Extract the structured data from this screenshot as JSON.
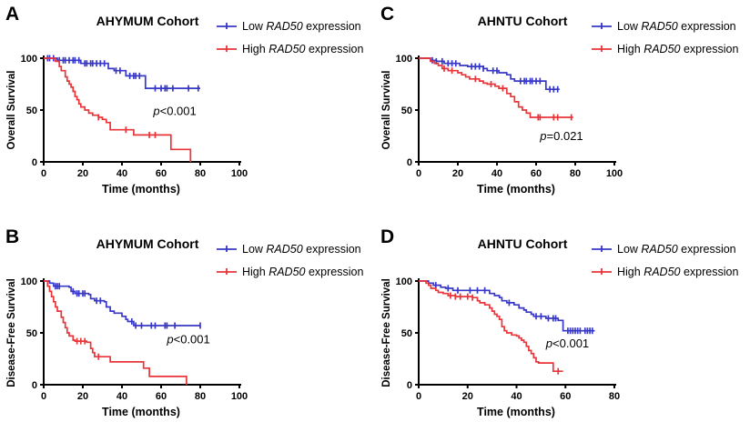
{
  "figure": {
    "background": "#ffffff",
    "colors": {
      "low": "#3737c8",
      "high": "#e93438",
      "axis": "#000000"
    },
    "legend": {
      "low": {
        "prefix": "Low ",
        "gene": "RAD50",
        "suffix": " expression"
      },
      "high": {
        "prefix": "High ",
        "gene": "RAD50",
        "suffix": " expression"
      }
    }
  },
  "chart_data": [
    {
      "panel": "A",
      "type": "line",
      "title": "AHYMUM Cohort",
      "xlabel": "Time (months)",
      "ylabel": "Overall Survival",
      "xlim": [
        0,
        100
      ],
      "xticks": [
        0,
        20,
        40,
        60,
        80,
        100
      ],
      "ylim": [
        0,
        100
      ],
      "yticks": [
        0,
        50,
        100
      ],
      "legend_position": "top-right",
      "grid": false,
      "p": {
        "symbol": "p",
        "comparison": "<0.001",
        "x": 56,
        "y": 45
      },
      "series": [
        {
          "name": "Low RAD50 expression",
          "color_key": "low",
          "steps": [
            [
              0,
              100
            ],
            [
              7,
              98
            ],
            [
              19,
              95
            ],
            [
              33,
              90
            ],
            [
              36,
              88
            ],
            [
              42,
              83
            ],
            [
              52,
              71
            ],
            [
              80,
              71
            ]
          ],
          "censors": [
            2,
            3,
            5,
            8,
            10,
            11,
            13,
            15,
            16,
            18,
            21,
            22,
            24,
            25,
            27,
            29,
            31,
            37,
            39,
            44,
            46,
            47,
            49,
            57,
            60,
            62,
            63,
            66,
            74,
            79
          ]
        },
        {
          "name": "High RAD50 expression",
          "color_key": "high",
          "steps": [
            [
              0,
              100
            ],
            [
              6,
              97
            ],
            [
              8,
              92
            ],
            [
              9,
              88
            ],
            [
              11,
              82
            ],
            [
              12,
              78
            ],
            [
              13,
              75
            ],
            [
              14,
              72
            ],
            [
              15,
              68
            ],
            [
              16,
              63
            ],
            [
              17,
              60
            ],
            [
              18,
              56
            ],
            [
              19,
              53
            ],
            [
              21,
              50
            ],
            [
              23,
              47
            ],
            [
              25,
              45
            ],
            [
              28,
              43
            ],
            [
              30,
              41
            ],
            [
              32,
              38
            ],
            [
              34,
              31
            ],
            [
              46,
              26
            ],
            [
              65,
              12
            ],
            [
              75,
              0
            ]
          ],
          "censors": [
            28,
            42,
            54,
            57
          ]
        }
      ]
    },
    {
      "panel": "B",
      "type": "line",
      "title": "AHYMUM Cohort",
      "xlabel": "Time (months)",
      "ylabel": "Disease-Free Survival",
      "xlim": [
        0,
        100
      ],
      "xticks": [
        0,
        20,
        40,
        60,
        80,
        100
      ],
      "ylim": [
        0,
        100
      ],
      "yticks": [
        0,
        50,
        100
      ],
      "legend_position": "top-right",
      "grid": false,
      "p": {
        "symbol": "p",
        "comparison": "<0.001",
        "x": 63,
        "y": 40
      },
      "series": [
        {
          "name": "Low RAD50 expression",
          "color_key": "low",
          "steps": [
            [
              0,
              100
            ],
            [
              3,
              98
            ],
            [
              5,
              95
            ],
            [
              13,
              94
            ],
            [
              14,
              90
            ],
            [
              16,
              88
            ],
            [
              23,
              87
            ],
            [
              24,
              83
            ],
            [
              26,
              81
            ],
            [
              31,
              80
            ],
            [
              32,
              75
            ],
            [
              34,
              71
            ],
            [
              36,
              69
            ],
            [
              40,
              66
            ],
            [
              42,
              63
            ],
            [
              43,
              61
            ],
            [
              46,
              57
            ],
            [
              80,
              57
            ]
          ],
          "censors": [
            6,
            7,
            8,
            15,
            17,
            18,
            20,
            21,
            27,
            29,
            45,
            47,
            50,
            55,
            57,
            62,
            63,
            67,
            80
          ]
        },
        {
          "name": "High RAD50 expression",
          "color_key": "high",
          "steps": [
            [
              0,
              100
            ],
            [
              2,
              95
            ],
            [
              3,
              90
            ],
            [
              4,
              85
            ],
            [
              5,
              80
            ],
            [
              6,
              75
            ],
            [
              7,
              71
            ],
            [
              9,
              65
            ],
            [
              10,
              60
            ],
            [
              11,
              55
            ],
            [
              12,
              50
            ],
            [
              13,
              47
            ],
            [
              15,
              43
            ],
            [
              16,
              42
            ],
            [
              22,
              41
            ],
            [
              24,
              35
            ],
            [
              25,
              31
            ],
            [
              26,
              27
            ],
            [
              34,
              22
            ],
            [
              51,
              16
            ],
            [
              54,
              8
            ],
            [
              73,
              0
            ]
          ],
          "censors": [
            17,
            19,
            21,
            28
          ]
        }
      ]
    },
    {
      "panel": "C",
      "type": "line",
      "title": "AHNTU Cohort",
      "xlabel": "Time (months)",
      "ylabel": "Overall Survival",
      "xlim": [
        0,
        100
      ],
      "xticks": [
        0,
        20,
        40,
        60,
        80,
        100
      ],
      "ylim": [
        0,
        100
      ],
      "yticks": [
        0,
        50,
        100
      ],
      "legend_position": "top-right",
      "grid": false,
      "p": {
        "symbol": "p",
        "comparison": "=0.021",
        "x": 62,
        "y": 21
      },
      "series": [
        {
          "name": "Low RAD50 expression",
          "color_key": "low",
          "steps": [
            [
              0,
              100
            ],
            [
              6,
              98
            ],
            [
              9,
              97
            ],
            [
              13,
              95
            ],
            [
              21,
              93
            ],
            [
              25,
              92
            ],
            [
              33,
              90
            ],
            [
              35,
              88
            ],
            [
              41,
              86
            ],
            [
              45,
              84
            ],
            [
              47,
              80
            ],
            [
              49,
              78
            ],
            [
              65,
              70
            ],
            [
              72,
              70
            ]
          ],
          "censors": [
            7,
            9,
            12,
            15,
            17,
            19,
            27,
            29,
            31,
            33,
            38,
            40,
            52,
            54,
            55,
            57,
            58,
            60,
            62,
            67,
            69,
            71
          ]
        },
        {
          "name": "High RAD50 expression",
          "color_key": "high",
          "steps": [
            [
              0,
              100
            ],
            [
              6,
              97
            ],
            [
              8,
              95
            ],
            [
              10,
              93
            ],
            [
              12,
              90
            ],
            [
              15,
              88
            ],
            [
              20,
              86
            ],
            [
              22,
              84
            ],
            [
              24,
              82
            ],
            [
              26,
              80
            ],
            [
              31,
              78
            ],
            [
              33,
              76
            ],
            [
              35,
              75
            ],
            [
              39,
              73
            ],
            [
              41,
              71
            ],
            [
              45,
              66
            ],
            [
              47,
              63
            ],
            [
              49,
              58
            ],
            [
              51,
              53
            ],
            [
              53,
              50
            ],
            [
              55,
              47
            ],
            [
              57,
              43
            ],
            [
              79,
              43
            ]
          ],
          "censors": [
            13,
            17,
            29,
            37,
            43,
            61,
            62,
            69,
            71,
            78
          ]
        }
      ]
    },
    {
      "panel": "D",
      "type": "line",
      "title": "AHNTU Cohort",
      "xlabel": "Time (months)",
      "ylabel": "Disease-Free Survival",
      "xlim": [
        0,
        80
      ],
      "xticks": [
        0,
        20,
        40,
        60,
        80
      ],
      "ylim": [
        0,
        100
      ],
      "yticks": [
        0,
        50,
        100
      ],
      "legend_position": "top-right",
      "grid": false,
      "p": {
        "symbol": "p",
        "comparison": "<0.001",
        "x": 52,
        "y": 36
      },
      "series": [
        {
          "name": "Low RAD50 expression",
          "color_key": "low",
          "steps": [
            [
              0,
              100
            ],
            [
              4,
              98
            ],
            [
              6,
              96
            ],
            [
              9,
              94
            ],
            [
              11,
              93
            ],
            [
              14,
              91
            ],
            [
              29,
              88
            ],
            [
              31,
              86
            ],
            [
              33,
              84
            ],
            [
              34,
              81
            ],
            [
              36,
              79
            ],
            [
              39,
              77
            ],
            [
              41,
              74
            ],
            [
              43,
              72
            ],
            [
              44,
              70
            ],
            [
              46,
              68
            ],
            [
              47,
              66
            ],
            [
              52,
              64
            ],
            [
              57,
              62
            ],
            [
              59,
              52
            ],
            [
              72,
              52
            ]
          ],
          "censors": [
            7,
            12,
            16,
            21,
            24,
            27,
            37,
            48,
            50,
            53,
            55,
            56,
            61,
            62,
            63,
            64,
            65,
            66,
            68,
            69,
            70,
            71
          ]
        },
        {
          "name": "High RAD50 expression",
          "color_key": "high",
          "steps": [
            [
              0,
              100
            ],
            [
              3,
              98
            ],
            [
              4,
              96
            ],
            [
              5,
              93
            ],
            [
              7,
              91
            ],
            [
              8,
              89
            ],
            [
              10,
              88
            ],
            [
              12,
              86
            ],
            [
              15,
              85
            ],
            [
              22,
              84
            ],
            [
              24,
              81
            ],
            [
              25,
              79
            ],
            [
              27,
              77
            ],
            [
              29,
              74
            ],
            [
              30,
              71
            ],
            [
              31,
              68
            ],
            [
              32,
              66
            ],
            [
              33,
              63
            ],
            [
              34,
              56
            ],
            [
              35,
              52
            ],
            [
              36,
              50
            ],
            [
              38,
              48
            ],
            [
              40,
              47
            ],
            [
              41,
              45
            ],
            [
              42,
              43
            ],
            [
              43,
              41
            ],
            [
              44,
              37
            ],
            [
              45,
              33
            ],
            [
              46,
              30
            ],
            [
              47,
              26
            ],
            [
              48,
              22
            ],
            [
              49,
              21
            ],
            [
              55,
              13
            ],
            [
              59,
              13
            ]
          ],
          "censors": [
            13,
            15,
            17,
            20,
            22,
            57
          ]
        }
      ]
    }
  ]
}
